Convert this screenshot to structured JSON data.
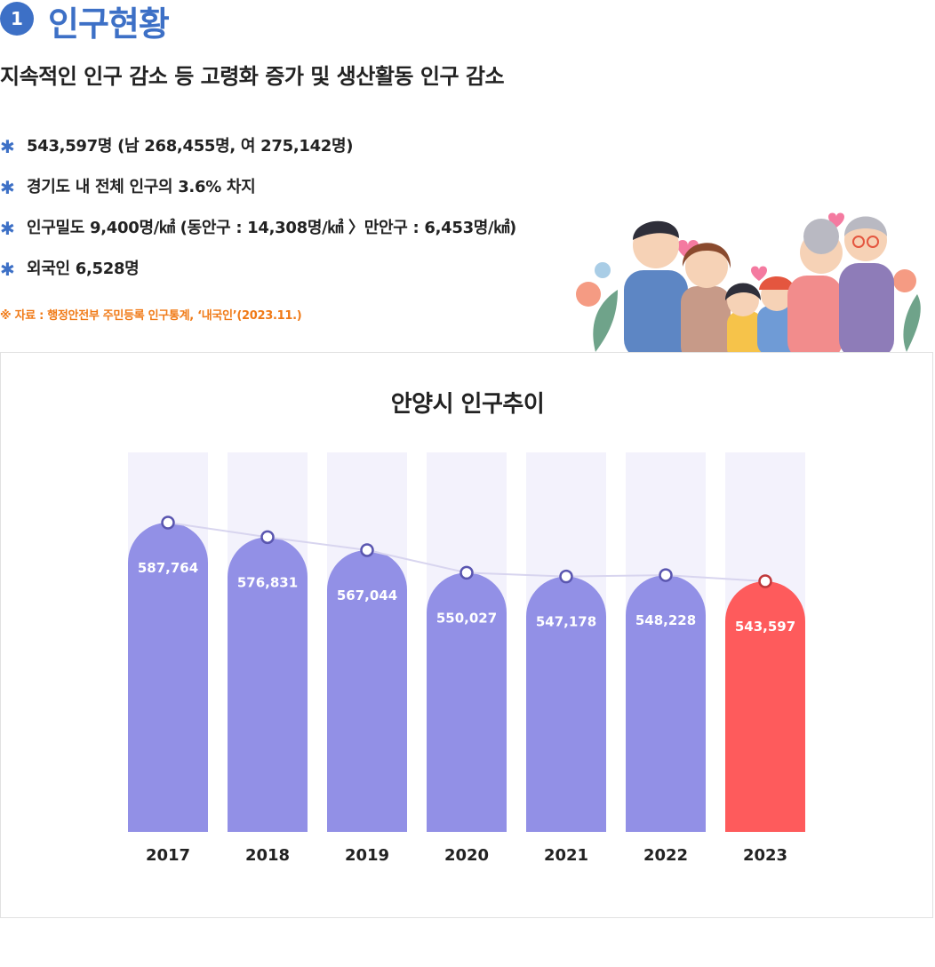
{
  "header": {
    "badge_number": "1",
    "title": "인구현황",
    "subtitle": "지속적인 인구 감소 등 고령화 증가 및 생산활동 인구 감소"
  },
  "stats": [
    "543,597명 (남 268,455명, 여 275,142명)",
    "경기도 내 전체 인구의 3.6% 차지",
    "인구밀도 9,400명/㎢ (동안구 : 14,308명/㎢  〉만안구 :  6,453명/㎢)",
    "외국인 6,528명"
  ],
  "bullet_symbol": "✱",
  "source": "※ 자료 : 행정안전부 주민등록 인구통계, ‘내국인’(2023.11.)",
  "illustration": "family-illustration",
  "colors": {
    "accent": "#3d70c6",
    "bar": "#9290e6",
    "bar_highlight": "#fe5b5c",
    "bar_background": "#f3f2fc",
    "line": "#d8d5ef",
    "source_text": "#f07a17"
  },
  "chart_data": {
    "type": "bar",
    "title": "안양시 인구추이",
    "categories": [
      "2017",
      "2018",
      "2019",
      "2020",
      "2021",
      "2022",
      "2023"
    ],
    "values": [
      587764,
      576831,
      567044,
      550027,
      547178,
      548228,
      543597
    ],
    "value_labels": [
      "587,764",
      "576,831",
      "567,044",
      "550,027",
      "547,178",
      "548,228",
      "543,597"
    ],
    "highlight_index": 6,
    "overlay_line": true,
    "grid": false,
    "legend": false
  }
}
